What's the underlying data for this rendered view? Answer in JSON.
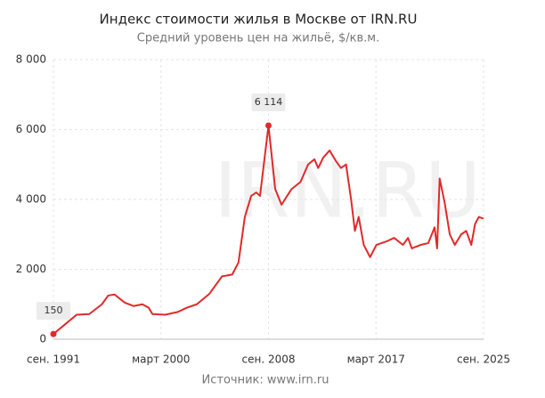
{
  "chart_data": {
    "type": "line",
    "title": "Индекс стоимости жилья в Москве от IRN.RU",
    "subtitle": "Средний уровень цен на жильё, $/кв.м.",
    "source": "Источник: www.irn.ru",
    "watermark": "IRN.RU",
    "x": [
      1991.67,
      1992.5,
      1993.5,
      1994.5,
      1995.5,
      1996.0,
      1996.5,
      1997.3,
      1998.0,
      1998.7,
      1999.2,
      1999.5,
      2000.5,
      2001.5,
      2002.2,
      2003.0,
      2004.0,
      2005.0,
      2005.8,
      2006.3,
      2006.8,
      2007.3,
      2007.7,
      2008.0,
      2008.67,
      2009.2,
      2009.7,
      2010.5,
      2011.2,
      2011.8,
      2012.3,
      2012.6,
      2013.0,
      2013.5,
      2014.0,
      2014.4,
      2014.8,
      2015.2,
      2015.5,
      2015.8,
      2016.2,
      2016.7,
      2017.2,
      2018.0,
      2018.6,
      2019.3,
      2019.7,
      2020.0,
      2020.7,
      2021.3,
      2021.8,
      2022.0,
      2022.2,
      2022.6,
      2023.0,
      2023.4,
      2023.9,
      2024.3,
      2024.7,
      2025.0,
      2025.3,
      2025.67
    ],
    "series": [
      {
        "color": "#e02a2a",
        "values": [
          150,
          400,
          700,
          720,
          1000,
          1250,
          1280,
          1050,
          950,
          1000,
          900,
          720,
          700,
          780,
          900,
          1000,
          1300,
          1800,
          1850,
          2200,
          3500,
          4100,
          4200,
          4100,
          6114,
          4300,
          3850,
          4300,
          4500,
          5000,
          5150,
          4900,
          5200,
          5400,
          5100,
          4900,
          5000,
          4000,
          3100,
          3500,
          2700,
          2350,
          2700,
          2800,
          2900,
          2700,
          2900,
          2600,
          2700,
          2750,
          3200,
          2600,
          4600,
          3900,
          3000,
          2700,
          3000,
          3100,
          2700,
          3300,
          3500,
          3450
        ],
        "value_labels": [
          "150",
          null,
          null,
          null,
          null,
          null,
          null,
          null,
          null,
          null,
          null,
          null,
          null,
          null,
          null,
          null,
          null,
          null,
          null,
          null,
          null,
          null,
          null,
          null,
          "6 114",
          null,
          null,
          null,
          null,
          null,
          null,
          null,
          null,
          null,
          null,
          null,
          null,
          null,
          null,
          null,
          null,
          null,
          null,
          null,
          null,
          null,
          null,
          null,
          null,
          null,
          null,
          null,
          null,
          null,
          null,
          null,
          null,
          null,
          null,
          null,
          null,
          null
        ]
      }
    ],
    "xlim": [
      1991.67,
      2025.67
    ],
    "xticks": [
      {
        "value": 1991.67,
        "label": "сен. 1991"
      },
      {
        "value": 2000.17,
        "label": "март 2000"
      },
      {
        "value": 2008.67,
        "label": "сен. 2008"
      },
      {
        "value": 2017.17,
        "label": "март 2017"
      },
      {
        "value": 2025.67,
        "label": "сен. 2025"
      }
    ],
    "ylim": [
      0,
      8000
    ],
    "yticks": [
      0,
      {
        "value": 2000,
        "label": "2 000"
      },
      {
        "value": 4000,
        "label": "4 000"
      },
      {
        "value": 6000,
        "label": "6 000"
      },
      {
        "value": 8000,
        "label": "8 000"
      }
    ],
    "grid": true
  }
}
